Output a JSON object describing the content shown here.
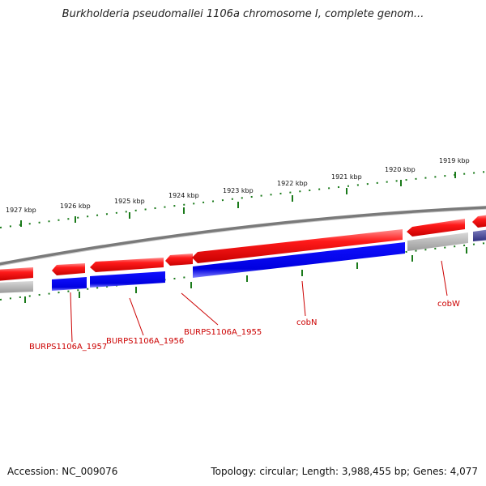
{
  "title": "Burkholderia pseudomallei 1106a chromosome I, complete genom...",
  "footer": {
    "accession": "Accession: NC_009076",
    "topology": "Topology: circular; Length: 3,988,455 bp; Genes: 4,077"
  },
  "ticks": [
    {
      "label": "1927 kbp",
      "pos": 1927
    },
    {
      "label": "1926 kbp",
      "pos": 1926
    },
    {
      "label": "1925 kbp",
      "pos": 1925
    },
    {
      "label": "1924 kbp",
      "pos": 1924
    },
    {
      "label": "1923 kbp",
      "pos": 1923
    },
    {
      "label": "1922 kbp",
      "pos": 1922
    },
    {
      "label": "1921 kbp",
      "pos": 1921
    },
    {
      "label": "1920 kbp",
      "pos": 1920
    },
    {
      "label": "1919 kbp",
      "pos": 1919
    }
  ],
  "gene_labels": [
    {
      "name": "BURPS1106A_1957"
    },
    {
      "name": "BURPS1106A_1956"
    },
    {
      "name": "BURPS1106A_1955"
    },
    {
      "name": "cobN"
    },
    {
      "name": "cobW"
    }
  ],
  "colors": {
    "forward_gene": "#ee0000",
    "cds": "#0000e0",
    "gray_feature": "#a8a8a8",
    "backbone": "#7a7a7a",
    "tick": "#1a7a1a",
    "label": "#cc0000"
  }
}
